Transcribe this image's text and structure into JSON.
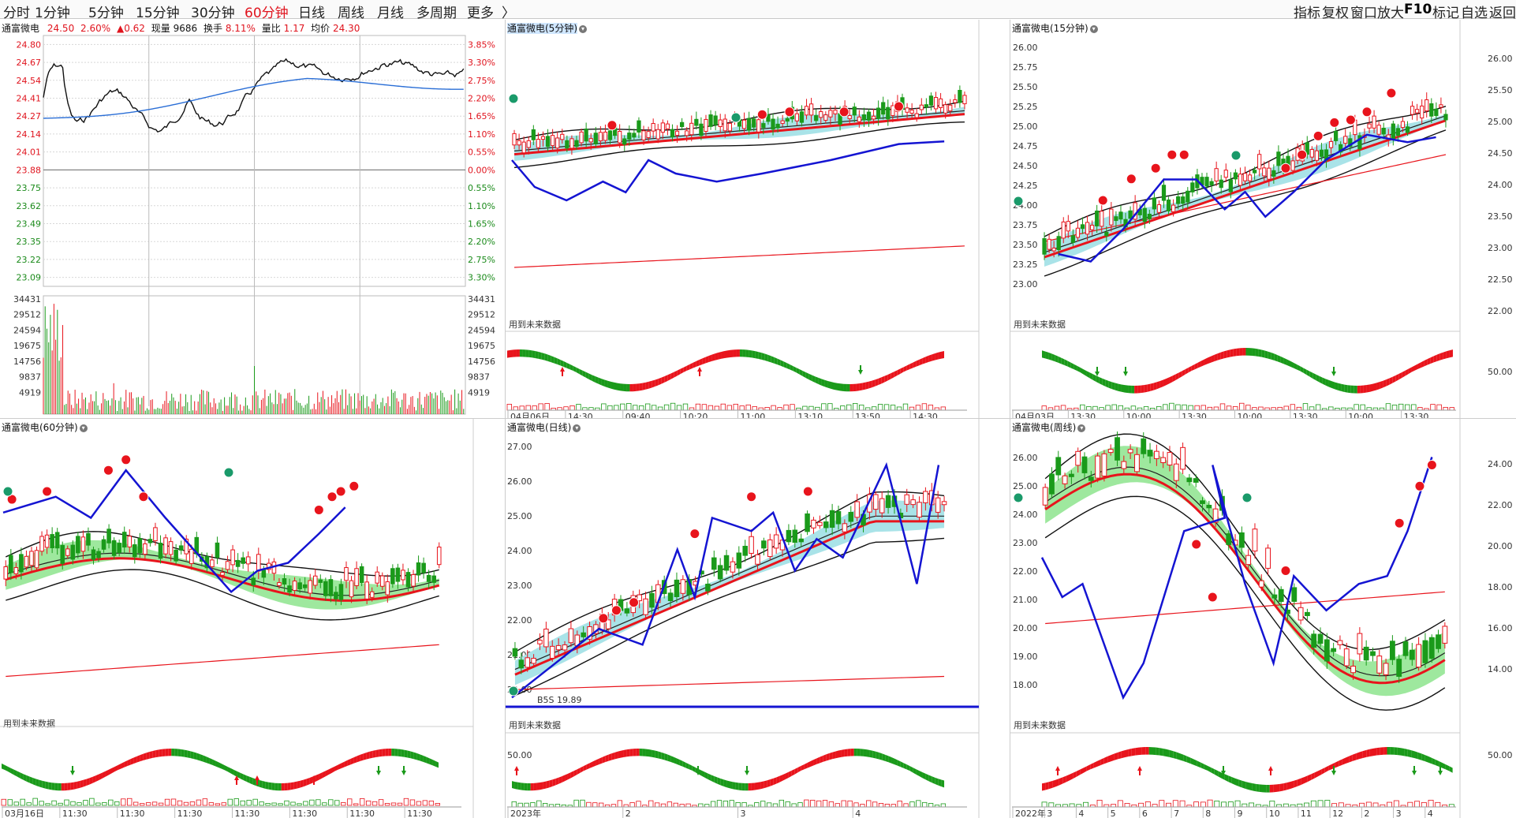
{
  "toolbar": {
    "tabs": [
      "分时",
      "1分钟",
      "5分钟",
      "15分钟",
      "30分钟",
      "60分钟",
      "日线",
      "周线",
      "月线",
      "多周期",
      "更多"
    ],
    "active_tab": "60分钟",
    "more_arrow": "〉",
    "right_items": [
      "指标",
      "复权",
      "窗口放大",
      "F10",
      "标记",
      "自选",
      "返回"
    ]
  },
  "timeshare": {
    "title": "通富微电",
    "price": "24.50",
    "pct": "2.60%",
    "change": "▲0.62",
    "volume_label": "现量",
    "volume": "9686",
    "turnover_label": "换手",
    "turnover": "8.11%",
    "ratio_label": "量比",
    "ratio": "1.17",
    "avg_label": "均价",
    "avg": "24.30",
    "price_ticks": [
      "24.80",
      "24.67",
      "24.54",
      "24.41",
      "24.27",
      "24.14",
      "24.01",
      "23.88",
      "23.75",
      "23.62",
      "23.49",
      "23.35",
      "23.22",
      "23.09"
    ],
    "pct_ticks": [
      "3.85%",
      "3.30%",
      "2.75%",
      "2.20%",
      "1.65%",
      "1.10%",
      "0.55%",
      "0.00%",
      "0.55%",
      "1.10%",
      "1.65%",
      "2.20%",
      "2.75%",
      "3.30%"
    ],
    "vol_ticks": [
      "34431",
      "29512",
      "24594",
      "19675",
      "14756",
      "9837",
      "4919"
    ]
  },
  "panels": {
    "p5": {
      "title": "通富微电(5分钟)",
      "note": "用到未来数据",
      "x_labels": [
        "04月06日",
        "14:30",
        "09:40",
        "10:20",
        "11:00",
        "13:10",
        "13:50",
        "14:30"
      ]
    },
    "p15": {
      "title": "通富微电(15分钟)",
      "note": "用到未来数据",
      "y_ticks": [
        "26.00",
        "25.75",
        "25.50",
        "25.25",
        "25.00",
        "24.75",
        "24.50",
        "24.25",
        "24.00",
        "23.75",
        "23.50",
        "23.25",
        "23.00"
      ],
      "right_ticks": [
        "26.00",
        "25.50",
        "25.00",
        "24.50",
        "24.00",
        "23.50",
        "23.00",
        "22.50",
        "22.00"
      ],
      "osc_tick": "50.00",
      "x_labels": [
        "04月03日",
        "13:30",
        "10:00",
        "13:30",
        "10:00",
        "13:30",
        "10:00",
        "13:30"
      ]
    },
    "p60": {
      "title": "通富微电(60分钟)",
      "note": "用到未来数据",
      "x_labels": [
        "03月16日",
        "11:30",
        "11:30",
        "11:30",
        "11:30",
        "11:30",
        "11:30",
        "11:30"
      ]
    },
    "pday": {
      "title": "通富微电(日线)",
      "note": "用到未来数据",
      "inline_label": "B5S 19.89",
      "y_ticks": [
        "27.00",
        "26.00",
        "25.00",
        "24.00",
        "23.00",
        "22.00",
        "21.00",
        "20.00"
      ],
      "osc_tick": "50.00",
      "x_labels": [
        "2023年",
        "2",
        "3",
        "4"
      ]
    },
    "pweek": {
      "title": "通富微电(周线)",
      "note": "用到未来数据",
      "y_ticks": [
        "26.00",
        "25.00",
        "24.00",
        "23.00",
        "22.00",
        "21.00",
        "20.00",
        "19.00",
        "18.00"
      ],
      "right_ticks": [
        "24.00",
        "22.00",
        "20.00",
        "18.00",
        "16.00",
        "14.00"
      ],
      "osc_tick": "50.00",
      "x_labels": [
        "2022年",
        "3",
        "4",
        "5",
        "6",
        "7",
        "8",
        "9",
        "10",
        "11",
        "12",
        "2",
        "3",
        "4"
      ]
    }
  },
  "colors": {
    "up": "#e8141c",
    "down": "#1a9a1a",
    "blue": "#1414d2",
    "cyan_fill": "#a9e3e8",
    "green_fill": "#9ee89e",
    "grid": "#d8d8d8",
    "tick_red": "#e0141e",
    "tick_green": "#1a8a1a"
  }
}
